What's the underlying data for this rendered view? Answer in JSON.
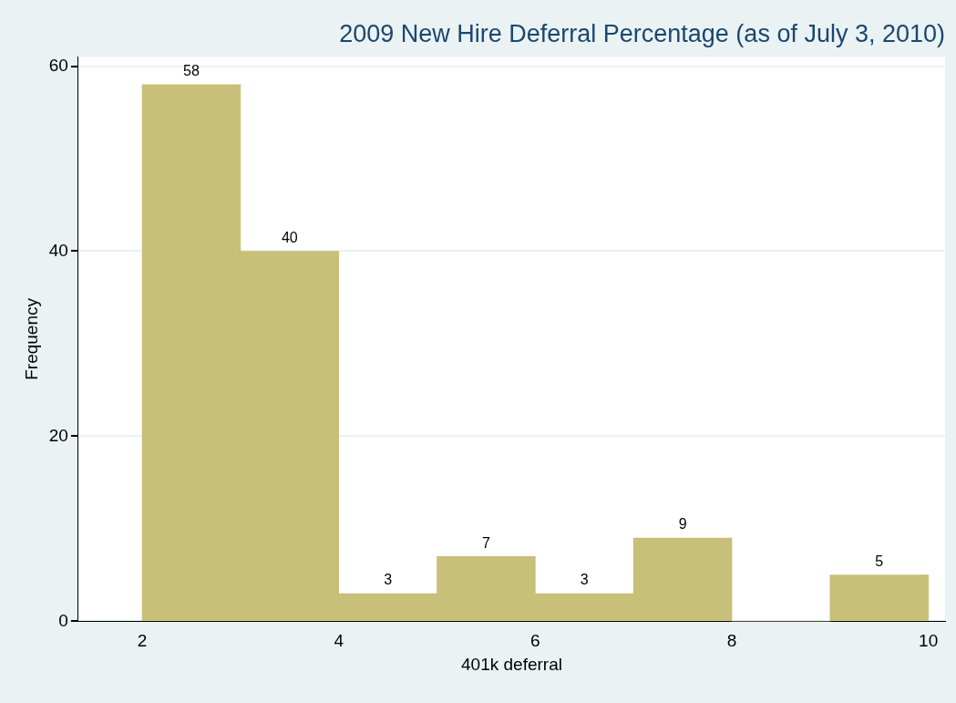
{
  "chart_data": {
    "type": "histogram",
    "title": "2009 New Hire Deferral Percentage (as of July 3, 2010)",
    "xlabel": "401k deferral",
    "ylabel": "Frequency",
    "bins": [
      2,
      3,
      4,
      5,
      6,
      7,
      8,
      9,
      10
    ],
    "values": [
      58,
      40,
      3,
      7,
      3,
      9,
      0,
      5
    ],
    "value_labels": [
      "58",
      "40",
      "3",
      "7",
      "3",
      "9",
      null,
      "5"
    ],
    "color": "#c8bf78",
    "xlim": [
      1.35,
      10.17
    ],
    "xticks": [
      2,
      4,
      6,
      8,
      10
    ],
    "ylim": [
      0,
      61
    ],
    "yticks": [
      0,
      20,
      40,
      60
    ],
    "grid": "y",
    "legend": false
  }
}
